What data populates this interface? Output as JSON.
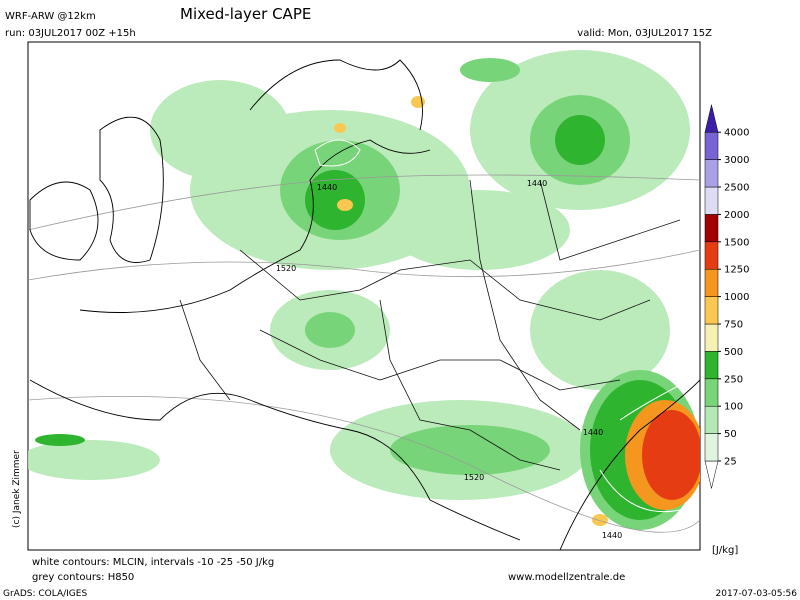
{
  "header": {
    "model": "WRF-ARW @12km",
    "run": "run: 03JUL2017 00Z +15h",
    "title": "Mixed-layer CAPE",
    "valid": "valid: Mon, 03JUL2017 15Z"
  },
  "copyright": "(c) Janek Zimmer",
  "map": {
    "contour_labels": [
      "1440",
      "1440",
      "1520",
      "1440",
      "1520",
      "1440"
    ]
  },
  "legend": {
    "levels": [
      25,
      50,
      100,
      250,
      500,
      750,
      1000,
      1250,
      1500,
      2000,
      2500,
      3000,
      4000
    ],
    "colors": [
      "#ffffff",
      "#e0f5e0",
      "#b4e8b4",
      "#78d478",
      "#2fb42f",
      "#f5f0b4",
      "#fac850",
      "#f5961e",
      "#e63c14",
      "#a00000",
      "#dcdcf5",
      "#aaa0e6",
      "#7864d2",
      "#3c1eaa"
    ],
    "unit": "[J/kg]"
  },
  "footer": {
    "cin": "white contours: MLCIN, intervals -10 -25 -50 J/kg",
    "h850": "grey contours: H850",
    "site": "www.modellzentrale.de",
    "grads": "GrADS: COLA/IGES",
    "timestamp": "2017-07-03-05:56"
  }
}
